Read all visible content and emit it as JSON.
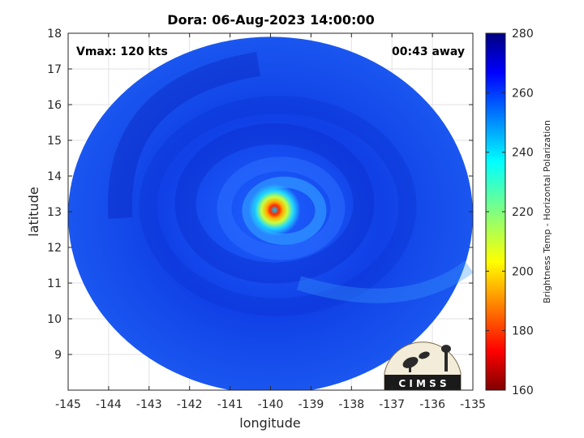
{
  "chart_data": {
    "type": "heatmap",
    "title": "Dora: 06-Aug-2023 14:00:00",
    "xlabel": "longitude",
    "ylabel": "latitude",
    "xlim": [
      -145,
      -135
    ],
    "ylim": [
      8,
      18
    ],
    "x_ticks": [
      "-145",
      "-144",
      "-143",
      "-142",
      "-141",
      "-140",
      "-139",
      "-138",
      "-137",
      "-136",
      "-135"
    ],
    "y_ticks": [
      "18",
      "17",
      "16",
      "15",
      "14",
      "13",
      "12",
      "11",
      "10",
      "9"
    ],
    "grid": true,
    "storm_center": {
      "lon": -139.9,
      "lat": 13.05
    },
    "swath": {
      "center_lon": -140.0,
      "center_lat": 12.9,
      "radius_deg": 5.0
    },
    "colorbar": {
      "label": "Brightness Temp - Horizontal Polarization",
      "range": [
        160,
        280
      ],
      "ticks": [
        "280",
        "260",
        "240",
        "220",
        "200",
        "180",
        "160"
      ],
      "colormap": "jet",
      "placement": "right"
    },
    "annotations": {
      "vmax": "Vmax: 120 kts",
      "away": "00:43 away"
    },
    "logo_text": "C I M S S"
  }
}
